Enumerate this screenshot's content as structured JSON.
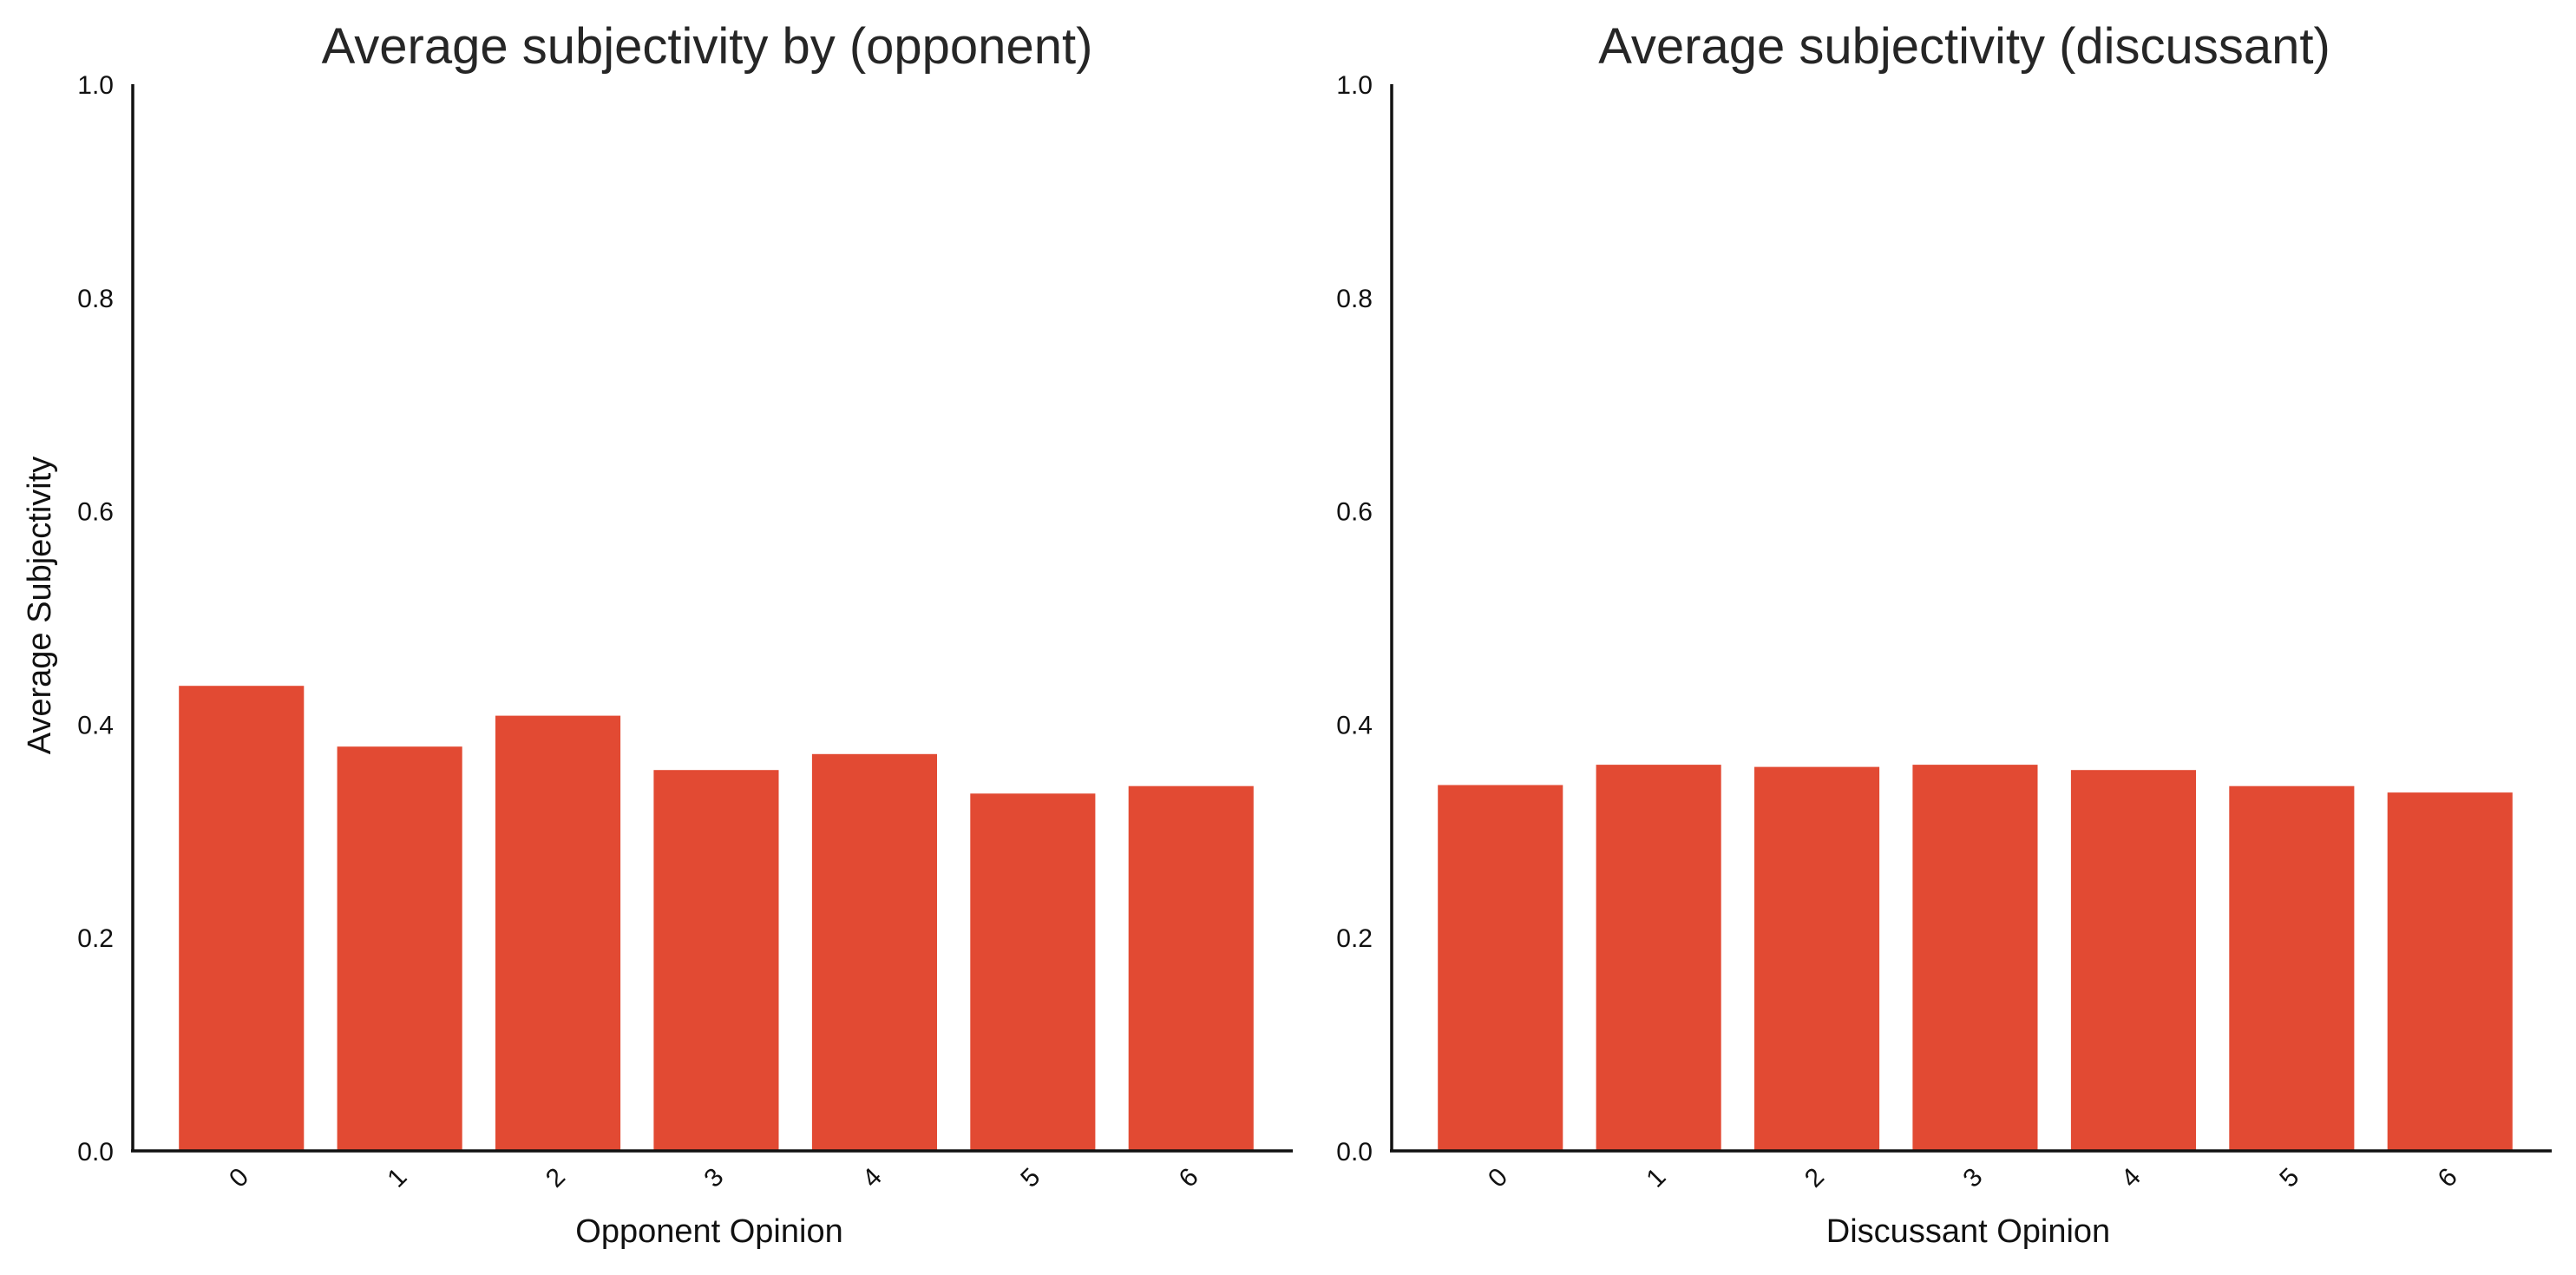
{
  "chart_data": [
    {
      "type": "bar",
      "title": "Average subjectivity by (opponent)",
      "xlabel": "Opponent Opinion",
      "ylabel": "Average Subjectivity",
      "categories": [
        "0",
        "1",
        "2",
        "3",
        "4",
        "5",
        "6"
      ],
      "values": [
        0.436,
        0.379,
        0.408,
        0.357,
        0.372,
        0.335,
        0.342
      ],
      "ylim": [
        0,
        1.0
      ],
      "yticks": [
        "0.0",
        "0.2",
        "0.4",
        "0.6",
        "0.8",
        "1.0"
      ],
      "grid": false,
      "bar_color": "#e24a33"
    },
    {
      "type": "bar",
      "title": "Average subjectivity (discussant)",
      "xlabel": "Discussant Opinion",
      "ylabel": "",
      "categories": [
        "0",
        "1",
        "2",
        "3",
        "4",
        "5",
        "6"
      ],
      "values": [
        0.343,
        0.362,
        0.36,
        0.362,
        0.357,
        0.342,
        0.336
      ],
      "ylim": [
        0,
        1.0
      ],
      "yticks": [
        "0.0",
        "0.2",
        "0.4",
        "0.6",
        "0.8",
        "1.0"
      ],
      "grid": false,
      "bar_color": "#e24a33"
    }
  ]
}
